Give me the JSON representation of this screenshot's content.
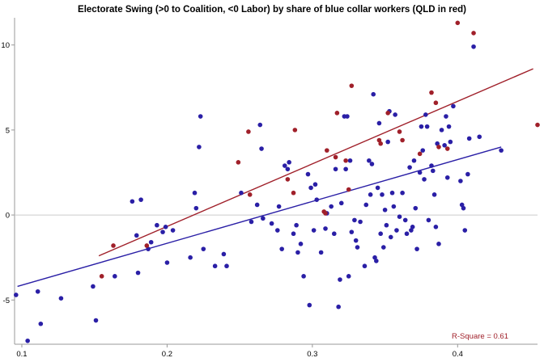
{
  "chart_data": {
    "type": "scatter",
    "title": "Electorate Swing (>0 to Coalition, <0 Labor) by share of blue collar workers (QLD in red)",
    "xlabel": "",
    "ylabel": "",
    "xlim": [
      0.095,
      0.455
    ],
    "ylim": [
      -7.6,
      11.6
    ],
    "xticks": [
      {
        "value": 0.1,
        "label": "0.1"
      },
      {
        "value": 0.2,
        "label": "0.2"
      },
      {
        "value": 0.3,
        "label": "0.3"
      },
      {
        "value": 0.4,
        "label": "0.4"
      }
    ],
    "yticks": [
      {
        "value": -5,
        "label": "-5"
      },
      {
        "value": 0,
        "label": "0"
      },
      {
        "value": 5,
        "label": "5"
      },
      {
        "value": 10,
        "label": "10"
      }
    ],
    "zero_line": true,
    "grid": false,
    "annotation": {
      "text": "R-Square = 0.61",
      "placement": "bottom-right"
    },
    "colors": {
      "other": "#2a1fa6",
      "qld": "#a0202a",
      "zero_line": "#cccccc",
      "axis": "#999999"
    },
    "series": [
      {
        "color": "#2a1fa6",
        "points": [
          [
            0.096,
            -4.7
          ],
          [
            0.104,
            -7.4
          ],
          [
            0.111,
            -4.5
          ],
          [
            0.113,
            -6.4
          ],
          [
            0.127,
            -4.9
          ],
          [
            0.149,
            -4.2
          ],
          [
            0.151,
            -6.2
          ],
          [
            0.164,
            -3.6
          ],
          [
            0.176,
            0.8
          ],
          [
            0.179,
            -1.2
          ],
          [
            0.18,
            -3.4
          ],
          [
            0.182,
            0.9
          ],
          [
            0.187,
            -2.0
          ],
          [
            0.189,
            -1.6
          ],
          [
            0.193,
            -0.6
          ],
          [
            0.197,
            -1.0
          ],
          [
            0.199,
            -0.7
          ],
          [
            0.2,
            -2.8
          ],
          [
            0.204,
            -0.9
          ],
          [
            0.216,
            -2.5
          ],
          [
            0.219,
            1.3
          ],
          [
            0.22,
            0.4
          ],
          [
            0.222,
            4.0
          ],
          [
            0.223,
            5.8
          ],
          [
            0.225,
            -2.0
          ],
          [
            0.233,
            -3.0
          ],
          [
            0.239,
            -2.3
          ],
          [
            0.241,
            -3.0
          ],
          [
            0.251,
            1.3
          ],
          [
            0.258,
            -0.4
          ],
          [
            0.262,
            0.6
          ],
          [
            0.264,
            5.3
          ],
          [
            0.265,
            3.9
          ],
          [
            0.266,
            -0.2
          ],
          [
            0.272,
            -0.5
          ],
          [
            0.276,
            -0.9
          ],
          [
            0.277,
            0.5
          ],
          [
            0.279,
            -2.0
          ],
          [
            0.281,
            2.9
          ],
          [
            0.283,
            2.7
          ],
          [
            0.284,
            3.1
          ],
          [
            0.287,
            -1.1
          ],
          [
            0.289,
            -0.6
          ],
          [
            0.29,
            -2.2
          ],
          [
            0.292,
            -1.7
          ],
          [
            0.294,
            -3.6
          ],
          [
            0.297,
            2.4
          ],
          [
            0.298,
            -5.3
          ],
          [
            0.299,
            1.6
          ],
          [
            0.301,
            -0.9
          ],
          [
            0.302,
            1.8
          ],
          [
            0.303,
            0.9
          ],
          [
            0.306,
            -2.2
          ],
          [
            0.309,
            -0.8
          ],
          [
            0.31,
            0.1
          ],
          [
            0.313,
            0.5
          ],
          [
            0.315,
            -1.1
          ],
          [
            0.316,
            2.7
          ],
          [
            0.318,
            -5.4
          ],
          [
            0.319,
            -3.8
          ],
          [
            0.32,
            0.7
          ],
          [
            0.322,
            5.8
          ],
          [
            0.323,
            2.7
          ],
          [
            0.324,
            5.8
          ],
          [
            0.325,
            -3.6
          ],
          [
            0.326,
            3.2
          ],
          [
            0.327,
            -1.0
          ],
          [
            0.329,
            -0.3
          ],
          [
            0.33,
            -1.5
          ],
          [
            0.331,
            -1.9
          ],
          [
            0.333,
            -0.4
          ],
          [
            0.336,
            -3.0
          ],
          [
            0.337,
            0.6
          ],
          [
            0.339,
            3.2
          ],
          [
            0.34,
            1.2
          ],
          [
            0.341,
            3.0
          ],
          [
            0.342,
            7.1
          ],
          [
            0.343,
            -2.5
          ],
          [
            0.344,
            -2.7
          ],
          [
            0.345,
            1.6
          ],
          [
            0.346,
            5.4
          ],
          [
            0.347,
            -1.1
          ],
          [
            0.348,
            1.2
          ],
          [
            0.349,
            -1.9
          ],
          [
            0.35,
            0.3
          ],
          [
            0.351,
            -0.6
          ],
          [
            0.352,
            4.3
          ],
          [
            0.353,
            6.1
          ],
          [
            0.354,
            -1.3
          ],
          [
            0.355,
            1.3
          ],
          [
            0.356,
            0.5
          ],
          [
            0.357,
            5.9
          ],
          [
            0.358,
            -0.9
          ],
          [
            0.36,
            -0.1
          ],
          [
            0.362,
            1.3
          ],
          [
            0.364,
            -0.3
          ],
          [
            0.365,
            -1.1
          ],
          [
            0.367,
            2.8
          ],
          [
            0.368,
            -0.9
          ],
          [
            0.369,
            -0.7
          ],
          [
            0.37,
            3.2
          ],
          [
            0.371,
            0.4
          ],
          [
            0.372,
            -2.0
          ],
          [
            0.374,
            2.5
          ],
          [
            0.375,
            5.2
          ],
          [
            0.376,
            3.8
          ],
          [
            0.377,
            2.1
          ],
          [
            0.378,
            5.9
          ],
          [
            0.379,
            5.2
          ],
          [
            0.38,
            -0.3
          ],
          [
            0.382,
            2.9
          ],
          [
            0.383,
            2.6
          ],
          [
            0.384,
            1.2
          ],
          [
            0.385,
            -0.7
          ],
          [
            0.386,
            4.2
          ],
          [
            0.387,
            -1.7
          ],
          [
            0.389,
            5.0
          ],
          [
            0.391,
            4.1
          ],
          [
            0.392,
            5.8
          ],
          [
            0.393,
            2.2
          ],
          [
            0.394,
            5.2
          ],
          [
            0.395,
            4.3
          ],
          [
            0.397,
            6.4
          ],
          [
            0.402,
            2.0
          ],
          [
            0.403,
            0.6
          ],
          [
            0.404,
            0.4
          ],
          [
            0.405,
            -0.9
          ],
          [
            0.407,
            2.4
          ],
          [
            0.408,
            4.5
          ],
          [
            0.411,
            9.9
          ],
          [
            0.415,
            4.6
          ],
          [
            0.43,
            3.8
          ]
        ]
      },
      {
        "color": "#a0202a",
        "points": [
          [
            0.155,
            -3.6
          ],
          [
            0.163,
            -1.8
          ],
          [
            0.186,
            -1.8
          ],
          [
            0.249,
            3.1
          ],
          [
            0.256,
            4.9
          ],
          [
            0.257,
            1.2
          ],
          [
            0.283,
            2.1
          ],
          [
            0.287,
            1.3
          ],
          [
            0.288,
            5.0
          ],
          [
            0.308,
            0.2
          ],
          [
            0.309,
            0.1
          ],
          [
            0.31,
            3.8
          ],
          [
            0.316,
            3.4
          ],
          [
            0.317,
            6.0
          ],
          [
            0.323,
            3.2
          ],
          [
            0.325,
            1.5
          ],
          [
            0.327,
            7.6
          ],
          [
            0.346,
            4.4
          ],
          [
            0.347,
            4.2
          ],
          [
            0.352,
            6.0
          ],
          [
            0.36,
            4.9
          ],
          [
            0.362,
            4.4
          ],
          [
            0.374,
            3.6
          ],
          [
            0.382,
            7.2
          ],
          [
            0.385,
            6.6
          ],
          [
            0.387,
            4.0
          ],
          [
            0.393,
            3.9
          ],
          [
            0.4,
            11.3
          ],
          [
            0.411,
            10.7
          ],
          [
            0.455,
            5.3
          ]
        ]
      }
    ],
    "fit_lines": [
      {
        "color": "#2a1fa6",
        "x": [
          0.097,
          0.43
        ],
        "y": [
          -4.2,
          4.0
        ]
      },
      {
        "color": "#a0202a",
        "x": [
          0.153,
          0.452
        ],
        "y": [
          -2.4,
          8.6
        ]
      }
    ]
  }
}
